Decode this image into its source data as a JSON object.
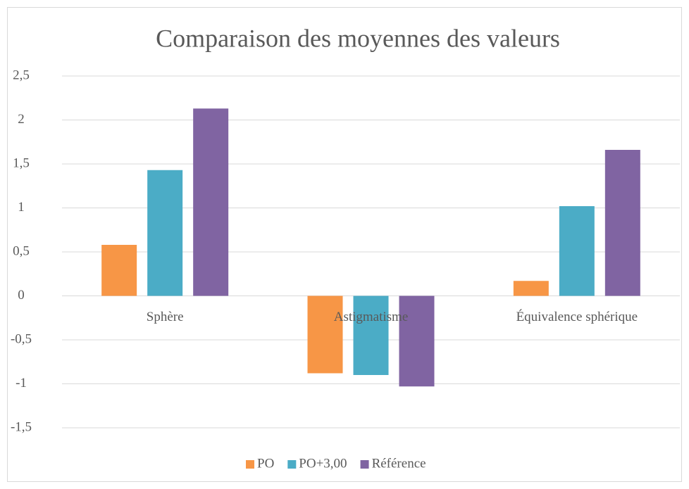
{
  "chart_data": {
    "type": "bar",
    "title": "Comparaison des moyennes des valeurs",
    "categories": [
      "Sphère",
      "Astigmatisme",
      "Équivalence sphérique"
    ],
    "series": [
      {
        "name": "PO",
        "color": "#f79646",
        "values": [
          0.58,
          -0.88,
          0.17
        ]
      },
      {
        "name": "PO+3,00",
        "color": "#4bacc6",
        "values": [
          1.43,
          -0.9,
          1.02
        ]
      },
      {
        "name": "Référence",
        "color": "#8064a2",
        "values": [
          2.13,
          -1.03,
          1.66
        ]
      }
    ],
    "ylim": [
      -1.5,
      2.5
    ],
    "yticks": [
      {
        "value": -1.5,
        "label": "-1,5"
      },
      -1,
      {
        "value": -0.5,
        "label": "-0,5"
      },
      0,
      {
        "value": 0.5,
        "label": "0,5"
      },
      1,
      {
        "value": 1.5,
        "label": "1,5"
      },
      2,
      {
        "value": 2.5,
        "label": "2,5"
      }
    ],
    "grid": true,
    "legend": "bottom"
  }
}
